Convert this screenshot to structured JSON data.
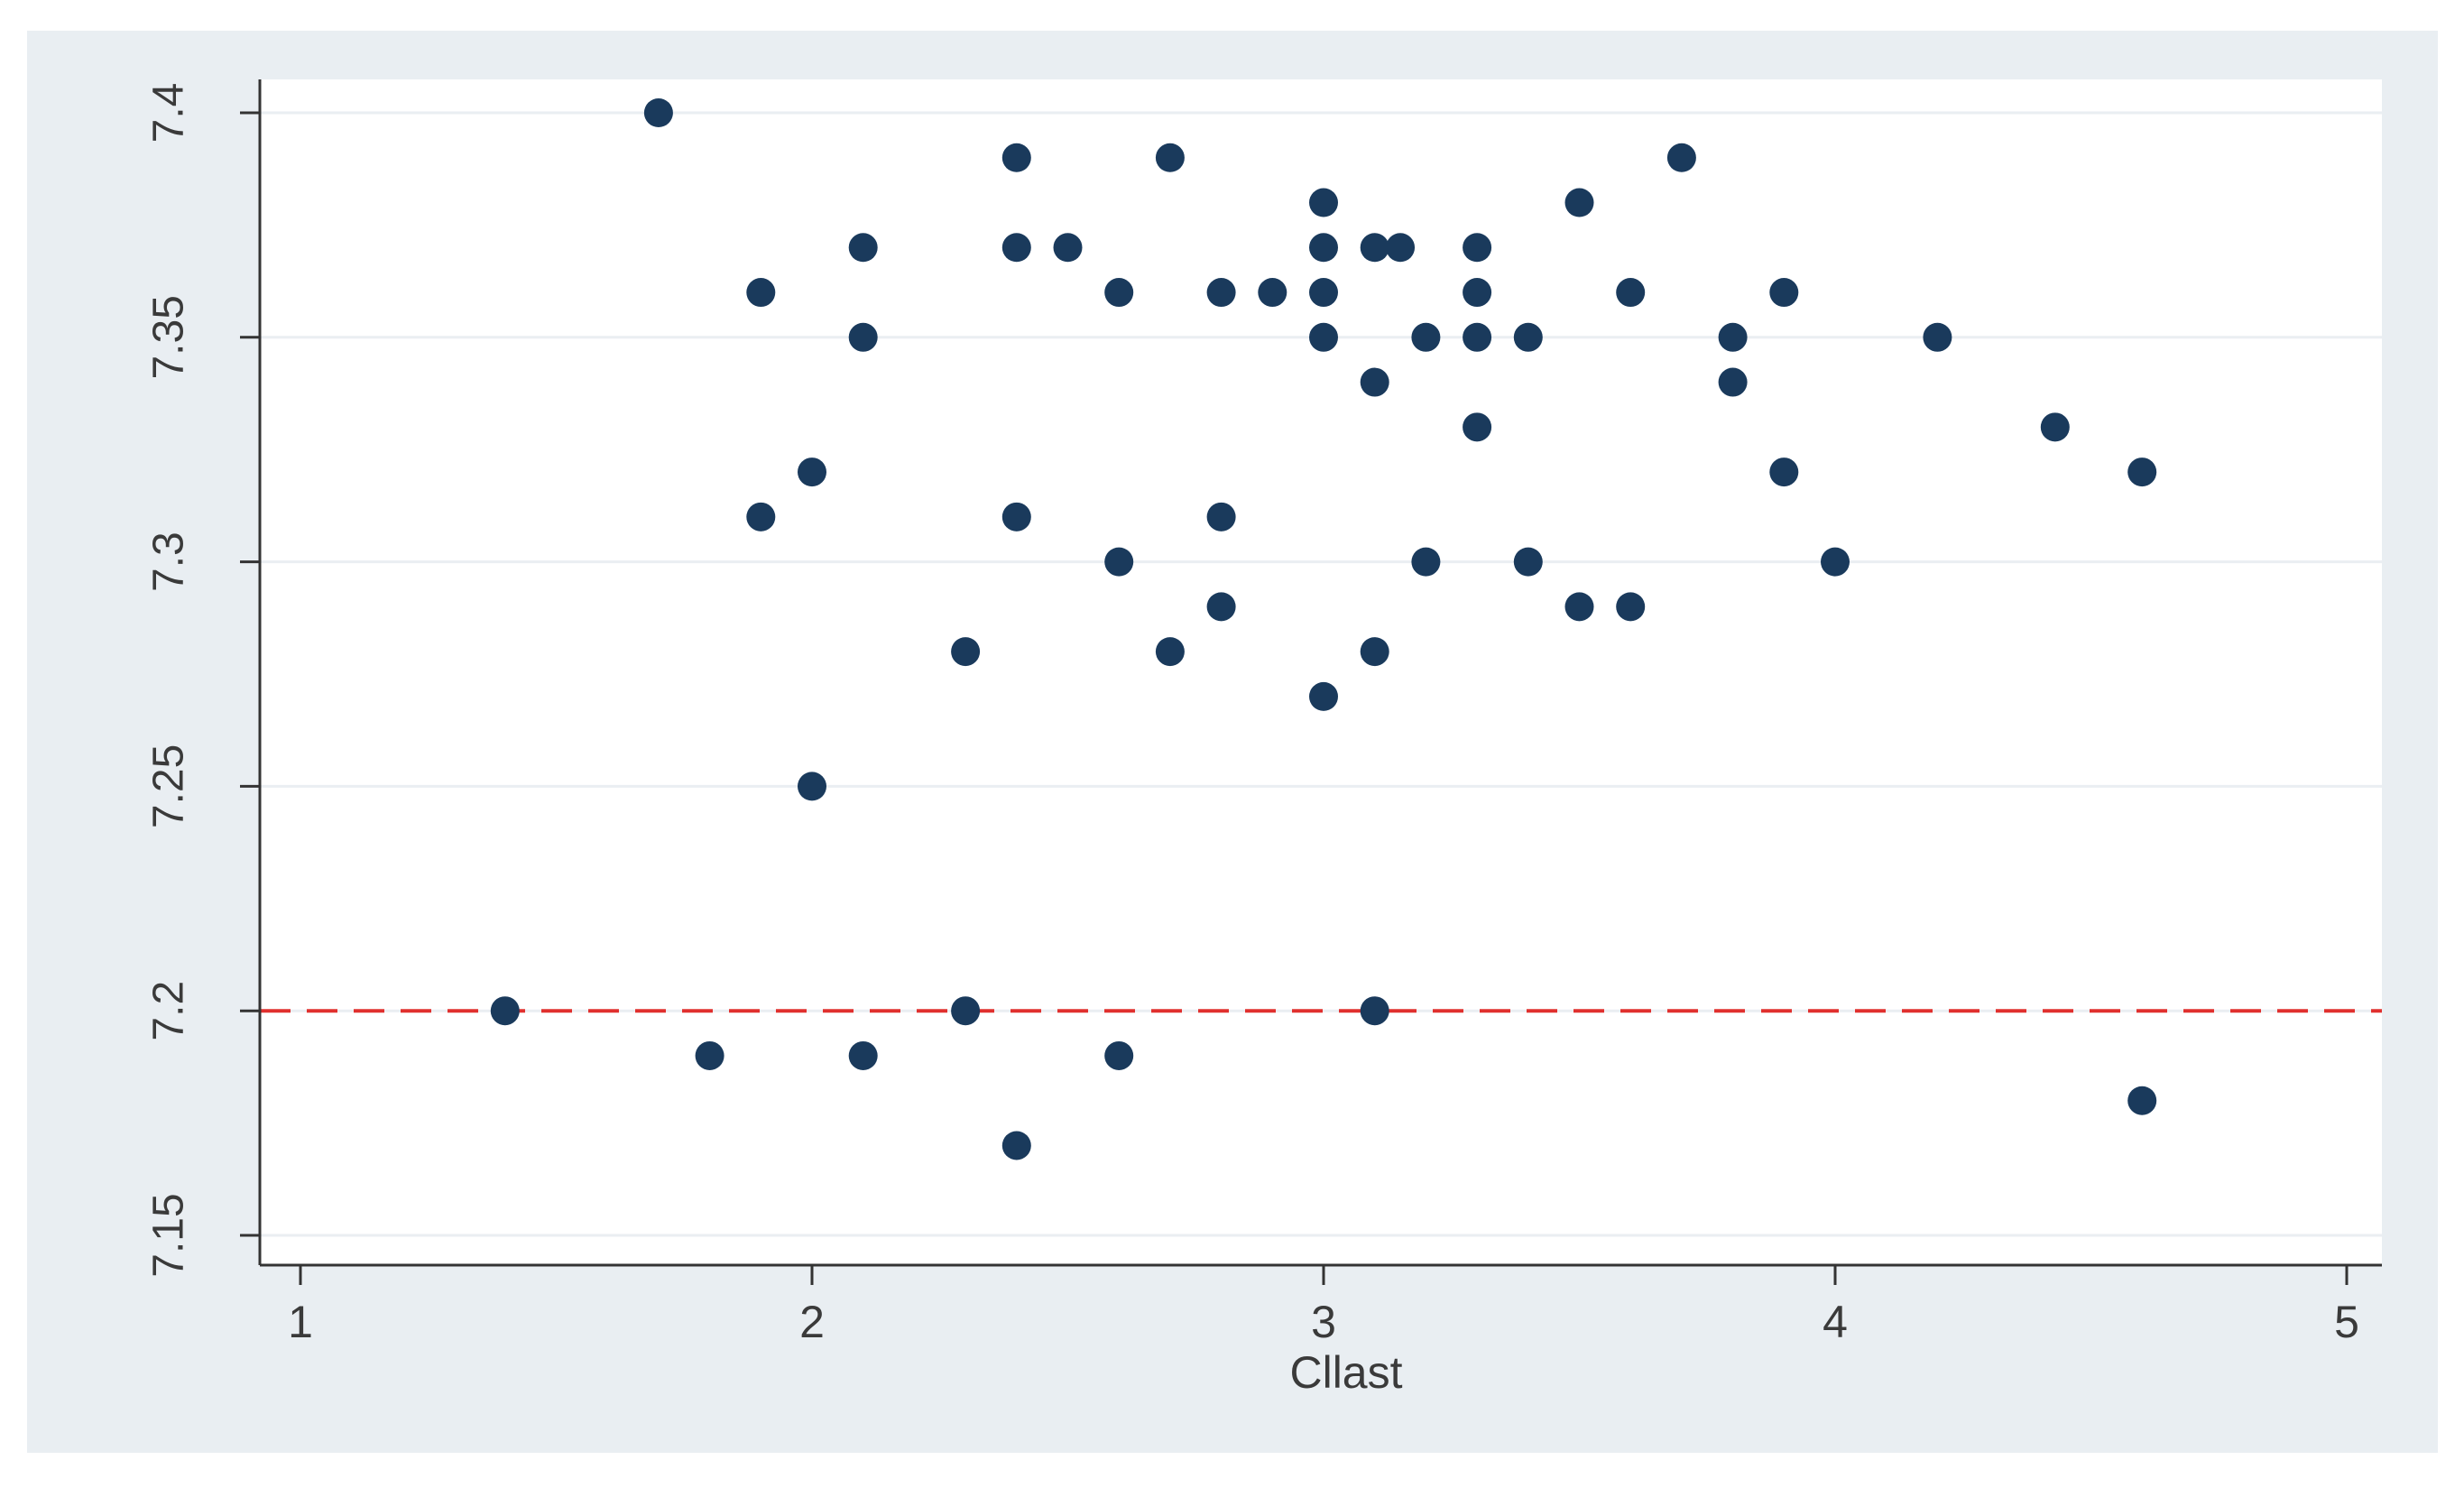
{
  "chart_data": {
    "type": "scatter",
    "title": "",
    "xlabel": "Cllast",
    "ylabel": "",
    "xlim": [
      1,
      5
    ],
    "ylim": [
      7.15,
      7.4
    ],
    "x_ticks": [
      1,
      2,
      3,
      4,
      5
    ],
    "y_ticks": [
      7.15,
      7.2,
      7.25,
      7.3,
      7.35,
      7.4
    ],
    "x_tick_labels": [
      "1",
      "2",
      "3",
      "4",
      "5"
    ],
    "y_tick_labels": [
      "7.15",
      "7.2",
      "7.25",
      "7.3",
      "7.35",
      "7.4"
    ],
    "grid": "horizontal",
    "reference_line": {
      "y": 7.2,
      "style": "dashed",
      "color": "#e0302e"
    },
    "colors": {
      "outer_background": "#e9eef2",
      "plot_background": "#ffffff",
      "marker": "#1a3a5c",
      "gridline": "#eaeef2",
      "axis": "#333333"
    },
    "series": [
      {
        "points": [
          [
            1.4,
            7.2
          ],
          [
            1.7,
            7.4
          ],
          [
            1.8,
            7.19
          ],
          [
            1.9,
            7.36
          ],
          [
            1.9,
            7.31
          ],
          [
            2.0,
            7.32
          ],
          [
            2.0,
            7.25
          ],
          [
            2.1,
            7.37
          ],
          [
            2.1,
            7.35
          ],
          [
            2.1,
            7.19
          ],
          [
            2.3,
            7.28
          ],
          [
            2.3,
            7.2
          ],
          [
            2.4,
            7.39
          ],
          [
            2.4,
            7.37
          ],
          [
            2.4,
            7.31
          ],
          [
            2.4,
            7.17
          ],
          [
            2.5,
            7.37
          ],
          [
            2.6,
            7.36
          ],
          [
            2.6,
            7.3
          ],
          [
            2.6,
            7.19
          ],
          [
            2.7,
            7.39
          ],
          [
            2.7,
            7.28
          ],
          [
            2.8,
            7.36
          ],
          [
            2.8,
            7.31
          ],
          [
            2.8,
            7.29
          ],
          [
            2.9,
            7.36
          ],
          [
            3.0,
            7.38
          ],
          [
            3.0,
            7.37
          ],
          [
            3.0,
            7.36
          ],
          [
            3.0,
            7.35
          ],
          [
            3.0,
            7.27
          ],
          [
            3.1,
            7.37
          ],
          [
            3.1,
            7.34
          ],
          [
            3.1,
            7.28
          ],
          [
            3.1,
            7.2
          ],
          [
            3.15,
            7.37
          ],
          [
            3.2,
            7.35
          ],
          [
            3.2,
            7.3
          ],
          [
            3.3,
            7.37
          ],
          [
            3.3,
            7.36
          ],
          [
            3.3,
            7.35
          ],
          [
            3.3,
            7.33
          ],
          [
            3.4,
            7.35
          ],
          [
            3.4,
            7.3
          ],
          [
            3.5,
            7.38
          ],
          [
            3.5,
            7.29
          ],
          [
            3.6,
            7.36
          ],
          [
            3.6,
            7.29
          ],
          [
            3.7,
            7.39
          ],
          [
            3.8,
            7.35
          ],
          [
            3.8,
            7.34
          ],
          [
            3.9,
            7.36
          ],
          [
            3.9,
            7.32
          ],
          [
            4.0,
            7.3
          ],
          [
            4.2,
            7.35
          ],
          [
            4.43,
            7.33
          ],
          [
            4.6,
            7.32
          ],
          [
            4.6,
            7.18
          ]
        ]
      }
    ]
  }
}
